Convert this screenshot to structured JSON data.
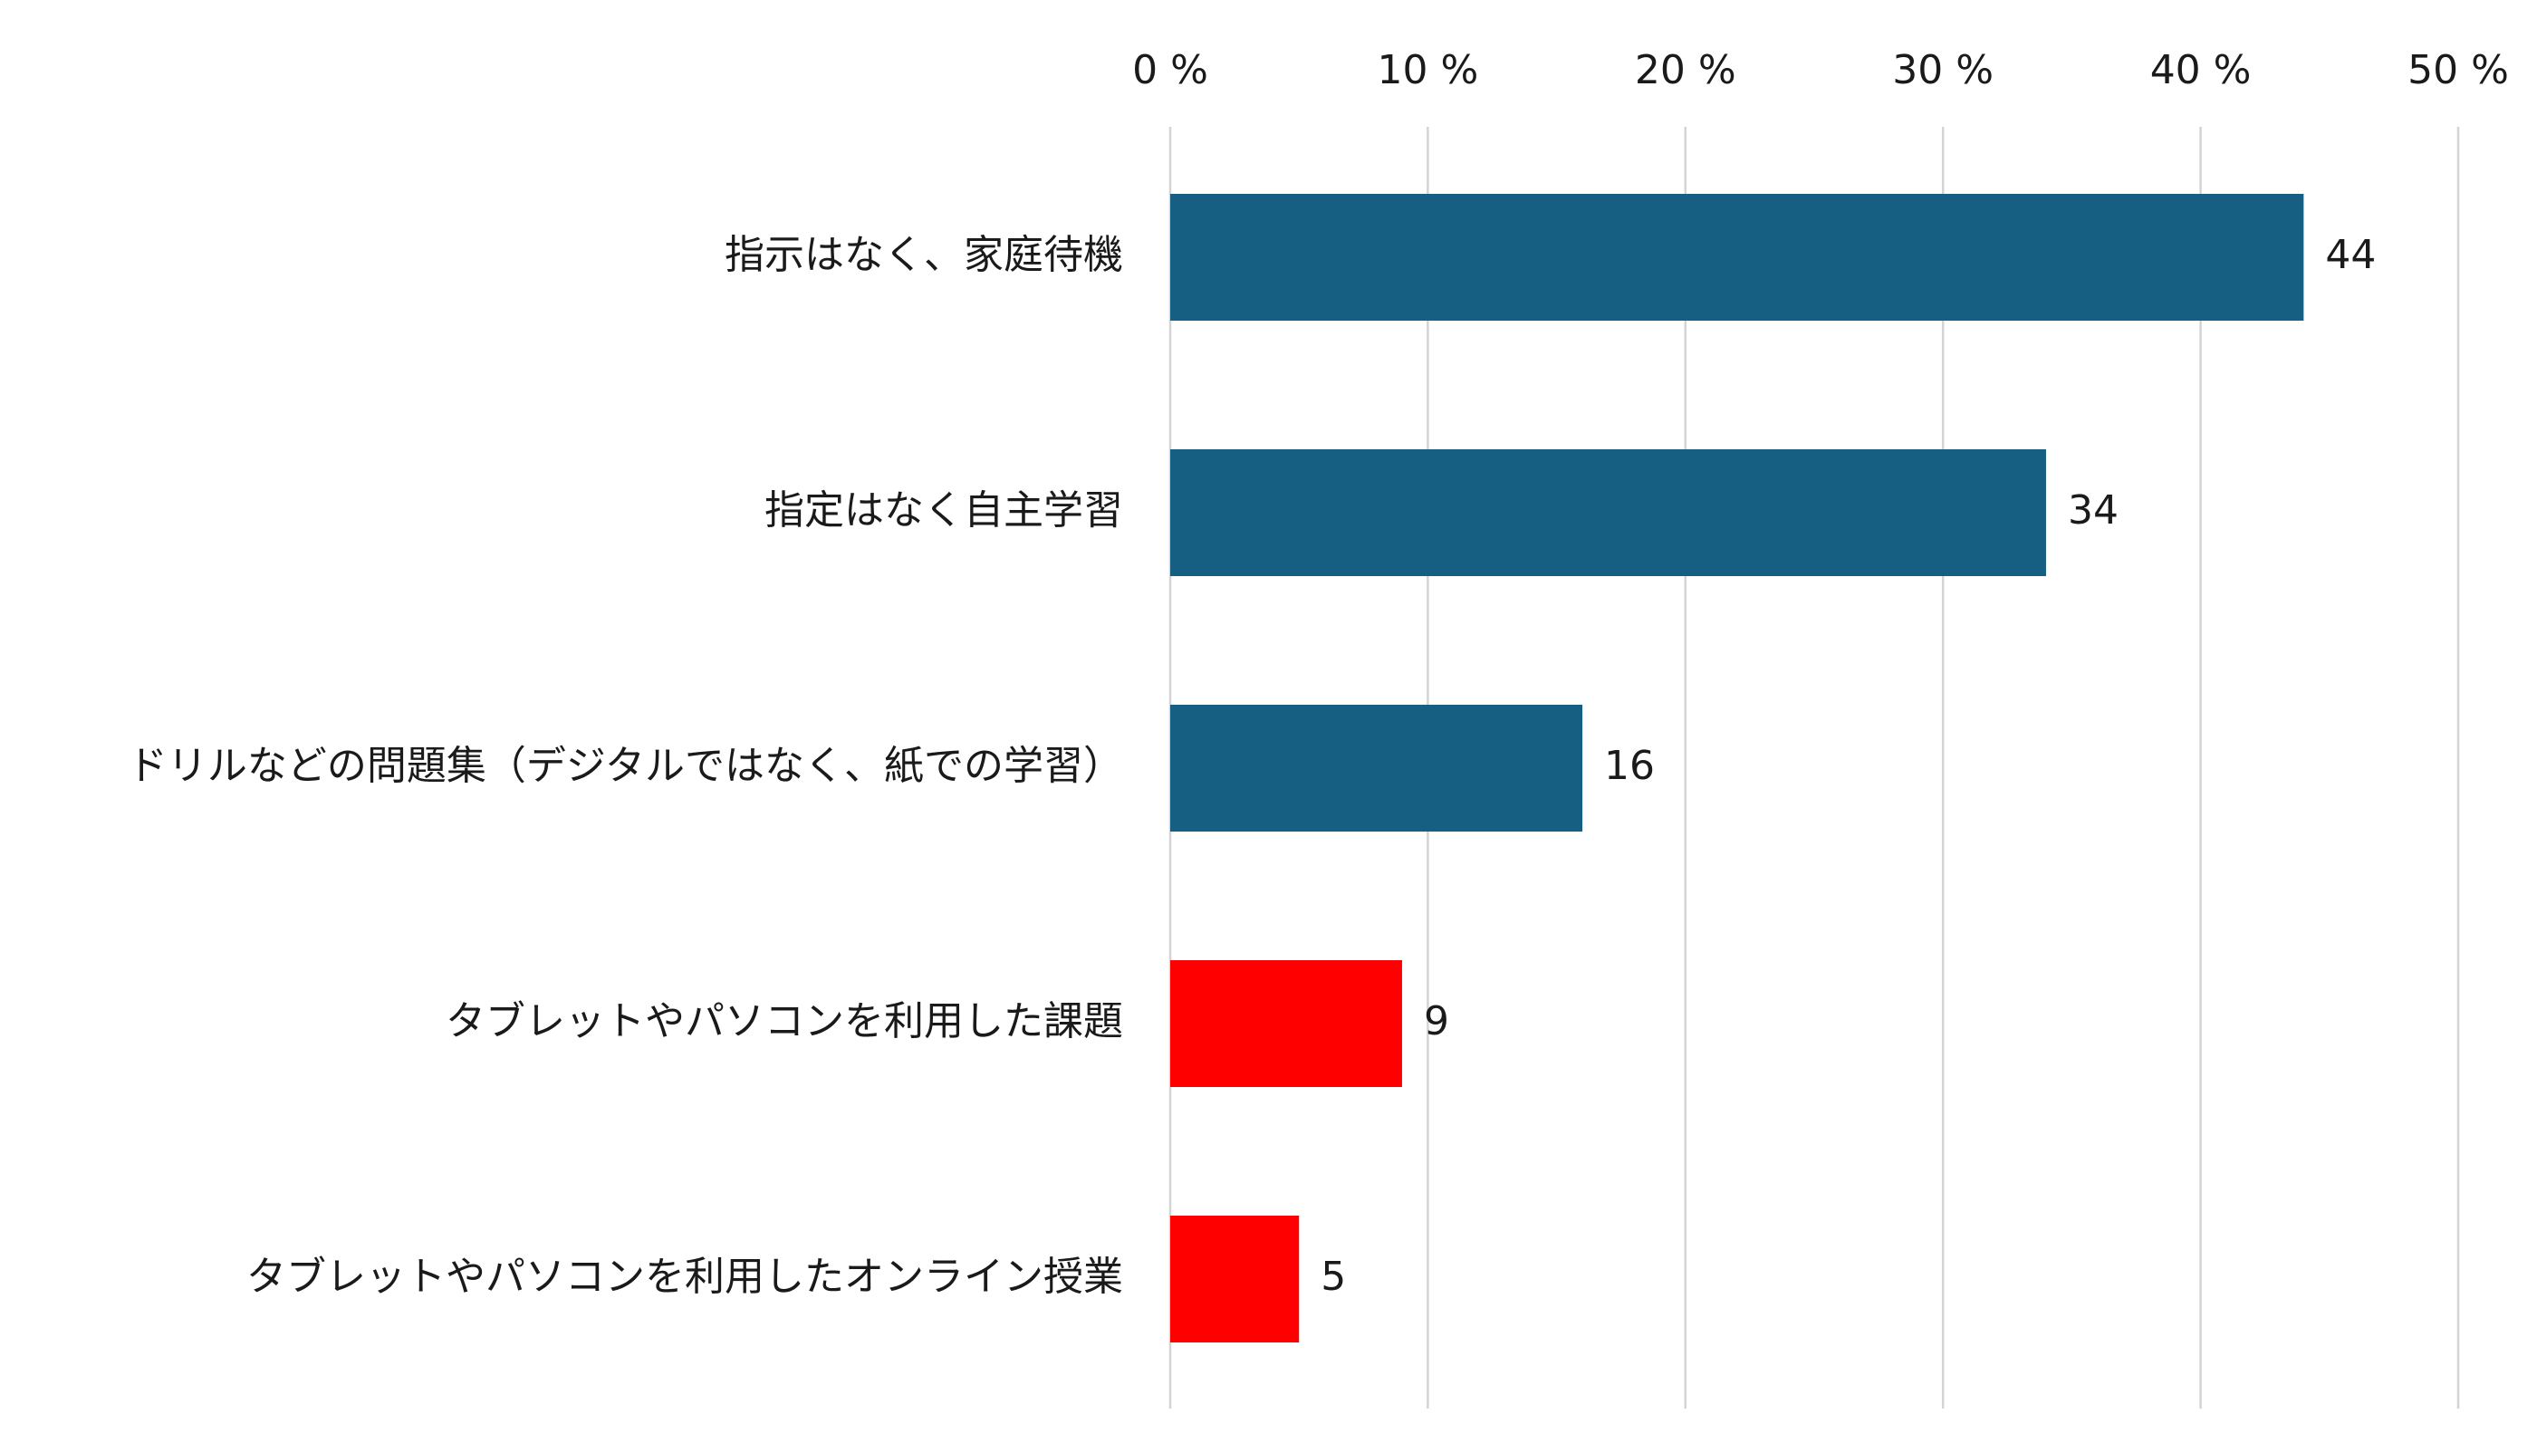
{
  "chart_data": {
    "type": "bar",
    "orientation": "horizontal",
    "categories": [
      "指示はなく、家庭待機",
      "指定はなく自主学習",
      "ドリルなどの問題集（デジタルではなく、紙での学習）",
      "タブレットやパソコンを利用した課題",
      "タブレットやパソコンを利用したオンライン授業"
    ],
    "values": [
      44,
      34,
      16,
      9,
      5
    ],
    "bar_colors": [
      "#175f82",
      "#175f82",
      "#175f82",
      "#ff0000",
      "#ff0000"
    ],
    "value_labels": [
      "44",
      "34",
      "16",
      "9",
      "5"
    ],
    "xlim": [
      0,
      50
    ],
    "x_ticks": [
      0,
      10,
      20,
      30,
      40,
      50
    ],
    "x_tick_labels": [
      "0 %",
      "10 %",
      "20 %",
      "30 %",
      "40 %",
      "50 %"
    ],
    "x_axis_position": "top",
    "grid": true,
    "legend": "none"
  }
}
